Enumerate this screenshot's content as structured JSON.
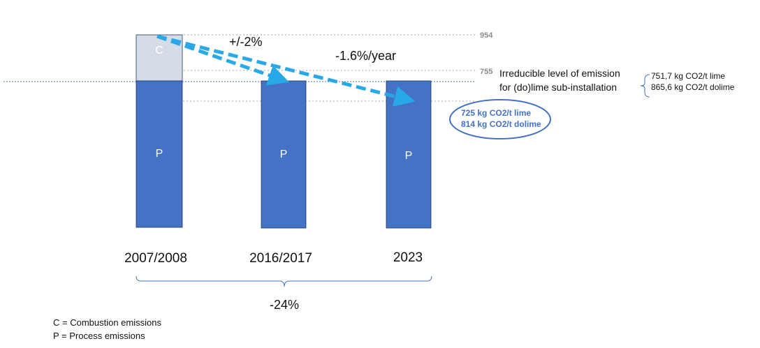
{
  "chart_data": {
    "type": "bar",
    "stacked": true,
    "categories": [
      "2007/2008",
      "2016/2017",
      "2023"
    ],
    "series": [
      {
        "name": "P",
        "values": [
          755,
          755,
          755
        ],
        "color": "#4472C4"
      },
      {
        "name": "C",
        "values": [
          199,
          0,
          0
        ],
        "color": "#D6DCE5"
      }
    ],
    "reference_lines": [
      {
        "value": 954,
        "label": "954"
      },
      {
        "value": 755,
        "label": "755"
      }
    ],
    "annotations": {
      "change_first": "+/-2%",
      "rate": "-1.6%/year",
      "irreducible_line1": "Irreducible level of emission",
      "irreducible_line2": "for (do)lime sub-installation",
      "irreducible_value_lime": "751,7 kg CO2/t lime",
      "irreducible_value_dolime": "865,6 kg CO2/t dolime",
      "target_lime": "725 kg CO2/t lime",
      "target_dolime": "814 kg CO2/t dolime",
      "total_change": "-24%"
    },
    "legend": [
      "C = Combustion emissions",
      "P = Process emissions"
    ],
    "colors": {
      "process": "#4472C4",
      "combustion": "#D6DCE5",
      "arrow": "#29A8E8",
      "refline": "#A6A6A6",
      "baseline": "#4472C4"
    }
  }
}
